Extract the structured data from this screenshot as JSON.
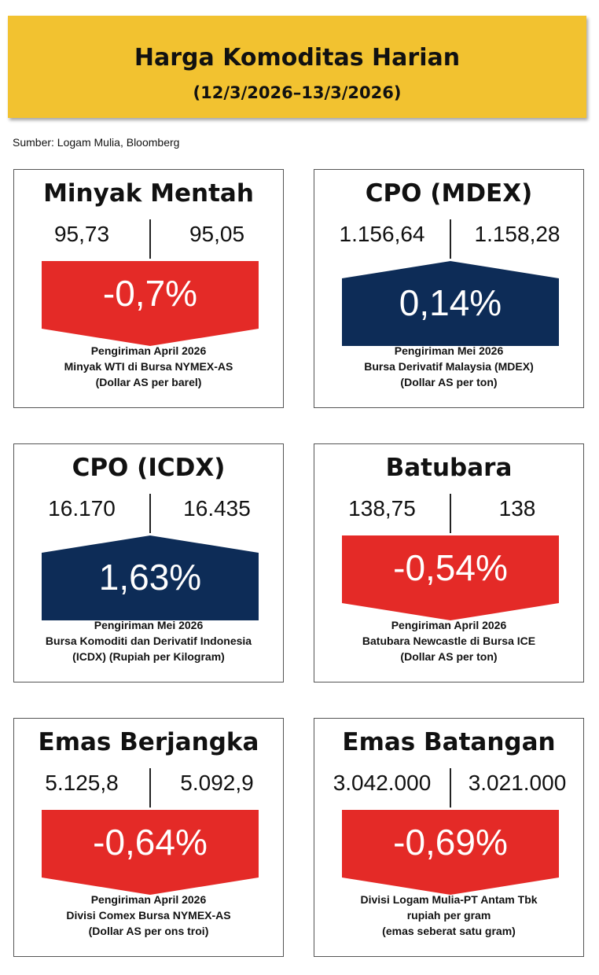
{
  "header": {
    "title": "Harga Komoditas Harian",
    "date_range": "(12/3/2026–13/3/2026)"
  },
  "source": "Sumber: Logam Mulia, Bloomberg",
  "colors": {
    "banner": "#f2c230",
    "down": "#e42a27",
    "up": "#0d2c57"
  },
  "cards": [
    {
      "title": "Minyak Mentah",
      "prev": "95,73",
      "curr": "95,05",
      "change": "-0,7%",
      "direction": "down",
      "notes": [
        "Pengiriman April 2026",
        "Minyak WTI di Bursa NYMEX-AS",
        "(Dollar AS per barel)"
      ]
    },
    {
      "title": "CPO (MDEX)",
      "prev": "1.156,64",
      "curr": "1.158,28",
      "change": "0,14%",
      "direction": "up",
      "notes": [
        "Pengiriman Mei 2026",
        "Bursa Derivatif Malaysia (MDEX)",
        "(Dollar AS per ton)"
      ]
    },
    {
      "title": "CPO (ICDX)",
      "prev": "16.170",
      "curr": "16.435",
      "change": "1,63%",
      "direction": "up",
      "notes": [
        "Pengiriman Mei 2026",
        "Bursa Komoditi dan Derivatif Indonesia",
        "(ICDX) (Rupiah per Kilogram)"
      ]
    },
    {
      "title": "Batubara",
      "prev": "138,75",
      "curr": "138",
      "change": "-0,54%",
      "direction": "down",
      "notes": [
        "Pengiriman April 2026",
        "Batubara Newcastle di Bursa ICE",
        "(Dollar AS per ton)"
      ]
    },
    {
      "title": "Emas Berjangka",
      "prev": "5.125,8",
      "curr": "5.092,9",
      "change": "-0,64%",
      "direction": "down",
      "notes": [
        "Pengiriman April 2026",
        "Divisi Comex Bursa NYMEX-AS",
        "(Dollar AS per ons troi)"
      ]
    },
    {
      "title": "Emas Batangan",
      "prev": "3.042.000",
      "curr": "3.021.000",
      "change": "-0,69%",
      "direction": "down",
      "notes": [
        "Divisi Logam Mulia-PT Antam Tbk",
        "rupiah per gram",
        "(emas seberat satu gram)"
      ]
    }
  ]
}
